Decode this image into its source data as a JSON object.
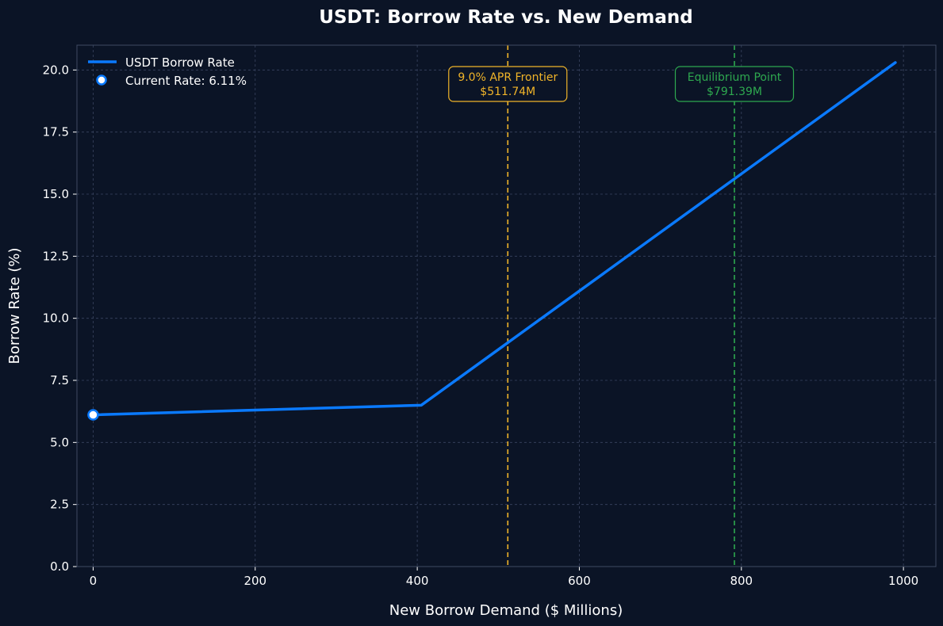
{
  "chart_data": {
    "type": "line",
    "title": "USDT: Borrow Rate vs. New Demand",
    "xlabel": "New Borrow Demand ($ Millions)",
    "ylabel": "Borrow Rate (%)",
    "xlim": [
      -20,
      1040
    ],
    "ylim": [
      0,
      21
    ],
    "xticks": [
      0,
      200,
      400,
      600,
      800,
      1000
    ],
    "yticks": [
      0.0,
      2.5,
      5.0,
      7.5,
      10.0,
      12.5,
      15.0,
      17.5,
      20.0
    ],
    "xtick_labels": [
      "0",
      "200",
      "400",
      "600",
      "800",
      "1000"
    ],
    "ytick_labels": [
      "0.0",
      "2.5",
      "5.0",
      "7.5",
      "10.0",
      "12.5",
      "15.0",
      "17.5",
      "20.0"
    ],
    "grid": true,
    "legend_position": "top-left",
    "series": [
      {
        "name": "USDT Borrow Rate",
        "color": "#0a7aff",
        "x": [
          0,
          405,
          990
        ],
        "y": [
          6.11,
          6.5,
          20.3
        ]
      }
    ],
    "current_point": {
      "label": "Current Rate: 6.11%",
      "x": 0,
      "y": 6.11
    },
    "annotations": [
      {
        "line1": "9.0% APR Frontier",
        "line2": "$511.74M",
        "x": 511.74,
        "color": "#f0b429"
      },
      {
        "line1": "Equilibrium Point",
        "line2": "$791.39M",
        "x": 791.39,
        "color": "#2ea84f"
      }
    ],
    "colors": {
      "background": "#0b1426",
      "grid": "#3a4560",
      "axis": "#3f4a63"
    }
  }
}
